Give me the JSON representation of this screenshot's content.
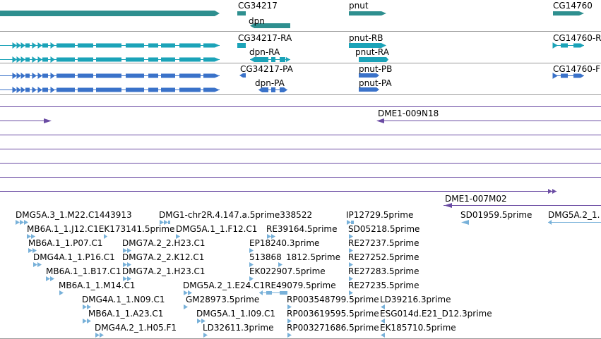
{
  "colors": {
    "gene": "#2e8f8f",
    "mrna": "#1ba3b8",
    "protein": "#3a72c9",
    "clone": "#6a4ba3",
    "est": "#78b1d9",
    "divider": "#9a9a9a",
    "text": "#000000"
  },
  "tracks": {
    "genes": {
      "items": [
        {
          "label": "CG34217"
        },
        {
          "label": "dpn"
        },
        {
          "label": "pnut"
        },
        {
          "label": "CG14760"
        }
      ]
    },
    "transcripts": {
      "items": [
        {
          "label": "CG34217-RA"
        },
        {
          "label": "dpn-RA"
        },
        {
          "label": "pnut-RB"
        },
        {
          "label": "pnut-RA"
        },
        {
          "label": "CG14760-R"
        }
      ]
    },
    "proteins": {
      "items": [
        {
          "label": "CG34217-PA"
        },
        {
          "label": "dpn-PA"
        },
        {
          "label": "pnut-PB"
        },
        {
          "label": "pnut-PA"
        },
        {
          "label": "CG14760-F"
        }
      ]
    },
    "clones": {
      "items": [
        {
          "label": "DME1-009N18"
        },
        {
          "label": "DME1-007M02"
        }
      ]
    },
    "ests": {
      "items": [
        {
          "label": "DMG5A.3_1.M22.C1443913"
        },
        {
          "label": "DMG1-chr2R.4.147.a.5prime338522"
        },
        {
          "label": "IP12729.5prime"
        },
        {
          "label": "SD01959.5prime"
        },
        {
          "label": "DMG5A.2_1."
        },
        {
          "label": "MB6A.1_1.J12.C1EK173141.5prime"
        },
        {
          "label": "DMG5A.1_1.F12.C1"
        },
        {
          "label": "RE39164.5prime"
        },
        {
          "label": "SD05218.5prime"
        },
        {
          "label": "MB6A.1_1.P07.C1"
        },
        {
          "label": "DMG7A.2_2.H23.C1"
        },
        {
          "label": "EP18240.3prime"
        },
        {
          "label": "RE27237.5prime"
        },
        {
          "label": "DMG4A.1_1.P16.C1"
        },
        {
          "label": "DMG7A.2_2.K12.C1"
        },
        {
          "label": "513868"
        },
        {
          "label": "1812.5prime"
        },
        {
          "label": "RE27252.5prime"
        },
        {
          "label": "MB6A.1_1.B17.C1"
        },
        {
          "label": "DMG7A.2_1.H23.C1"
        },
        {
          "label": "EK022907.5prime"
        },
        {
          "label": "RE27283.5prime"
        },
        {
          "label": "MB6A.1_1.M14.C1"
        },
        {
          "label": "DMG5A.2_1.E24.C1RE49079.5prime"
        },
        {
          "label": "RE27235.5prime"
        },
        {
          "label": "DMG4A.1_1.N09.C1"
        },
        {
          "label": "GM28973.5prime"
        },
        {
          "label": "RP003548799.5prime"
        },
        {
          "label": "LD39216.3prime"
        },
        {
          "label": "MB6A.1_1.A23.C1"
        },
        {
          "label": "DMG5A.1_1.I09.C1"
        },
        {
          "label": "RP003619595.5prime"
        },
        {
          "label": "ESG014d.E21_D12.3prime"
        },
        {
          "label": "DMG4A.2_1.H05.F1"
        },
        {
          "label": "LD32611.3prime"
        },
        {
          "label": "RP003271686.5prime"
        },
        {
          "label": "EK185710.5prime"
        }
      ]
    }
  }
}
